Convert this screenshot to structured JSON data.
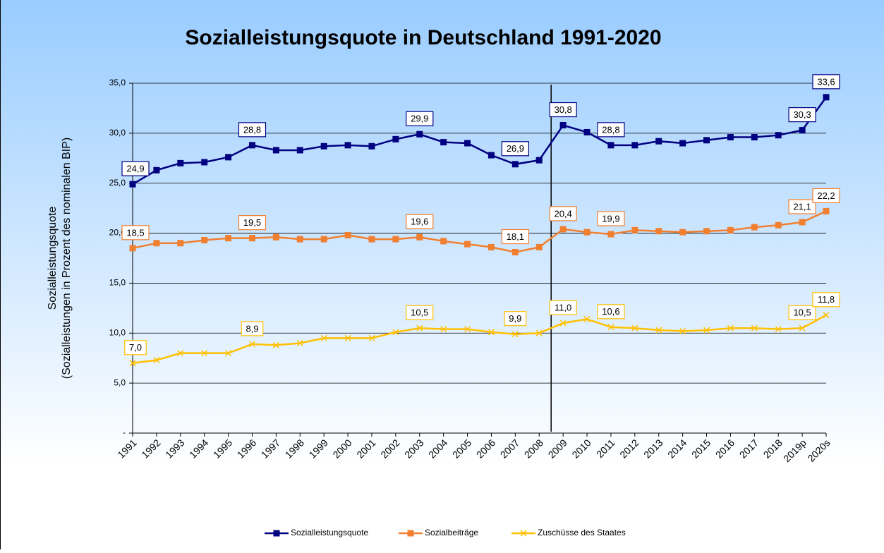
{
  "chart_data": {
    "type": "line",
    "title": "Sozialleistungsquote in Deutschland 1991-2020",
    "ylabel": [
      "Sozialleistungsquote",
      "(Sozialleistungen in Prozent des nominalen BIP)"
    ],
    "categories": [
      "1991",
      "1992",
      "1993",
      "1994",
      "1995",
      "1996",
      "1997",
      "1998",
      "1999",
      "2000",
      "2001",
      "2002",
      "2003",
      "2004",
      "2005",
      "2006",
      "2007",
      "2008",
      "2009",
      "2010",
      "2011",
      "2012",
      "2013",
      "2014",
      "2015",
      "2016",
      "2017",
      "2018",
      "2019p",
      "2020s"
    ],
    "series": [
      {
        "name": "Sozialleistungsquote",
        "color": "#000080",
        "marker": "square",
        "values": [
          24.9,
          26.3,
          27.0,
          27.1,
          27.6,
          28.8,
          28.3,
          28.3,
          28.7,
          28.8,
          28.7,
          29.4,
          29.9,
          29.1,
          29.0,
          27.8,
          26.9,
          27.3,
          30.8,
          30.1,
          28.8,
          28.8,
          29.2,
          29.0,
          29.3,
          29.6,
          29.6,
          29.8,
          30.3,
          33.6
        ],
        "value_labels": [
          "24,9",
          null,
          null,
          null,
          null,
          "28,8",
          null,
          null,
          null,
          null,
          null,
          null,
          "29,9",
          null,
          null,
          null,
          "26,9",
          null,
          "30,8",
          null,
          "28,8",
          null,
          null,
          null,
          null,
          null,
          null,
          null,
          "30,3",
          "33,6"
        ]
      },
      {
        "name": "Sozialbeiträge",
        "color": "#f07f30",
        "marker": "square",
        "values": [
          18.5,
          19.0,
          19.0,
          19.3,
          19.5,
          19.5,
          19.6,
          19.4,
          19.4,
          19.8,
          19.4,
          19.4,
          19.6,
          19.2,
          18.9,
          18.6,
          18.1,
          18.6,
          20.4,
          20.1,
          19.9,
          20.3,
          20.2,
          20.1,
          20.2,
          20.3,
          20.6,
          20.8,
          21.1,
          22.2
        ],
        "value_labels": [
          "18,5",
          null,
          null,
          null,
          null,
          "19,5",
          null,
          null,
          null,
          null,
          null,
          null,
          "19,6",
          null,
          null,
          null,
          "18,1",
          null,
          "20,4",
          null,
          "19,9",
          null,
          null,
          null,
          null,
          null,
          null,
          null,
          "21,1",
          "22,2"
        ]
      },
      {
        "name": "Zuschüsse des Staates",
        "color": "#ffc000",
        "marker": "x",
        "values": [
          7.0,
          7.3,
          8.0,
          8.0,
          8.0,
          8.9,
          8.8,
          9.0,
          9.5,
          9.5,
          9.5,
          10.1,
          10.5,
          10.4,
          10.4,
          10.1,
          9.9,
          10.0,
          11.0,
          11.4,
          10.6,
          10.5,
          10.3,
          10.2,
          10.3,
          10.5,
          10.5,
          10.4,
          10.5,
          11.8
        ],
        "value_labels": [
          "7,0",
          null,
          null,
          null,
          null,
          "8,9",
          null,
          null,
          null,
          null,
          null,
          null,
          "10,5",
          null,
          null,
          null,
          "9,9",
          null,
          "11,0",
          null,
          "10,6",
          null,
          null,
          null,
          null,
          null,
          null,
          null,
          "10,5",
          "11,8"
        ]
      }
    ],
    "ylim": [
      0,
      35
    ],
    "yticks": [
      {
        "value": 0,
        "label": "-"
      },
      {
        "value": 5,
        "label": "5,0"
      },
      {
        "value": 10,
        "label": "10,0"
      },
      {
        "value": 15,
        "label": "15,0"
      },
      {
        "value": 20,
        "label": "20,0"
      },
      {
        "value": 25,
        "label": "25,0"
      },
      {
        "value": 30,
        "label": "30,0"
      },
      {
        "value": 35,
        "label": "35,0"
      }
    ],
    "grid": true,
    "legend": "bottom"
  }
}
